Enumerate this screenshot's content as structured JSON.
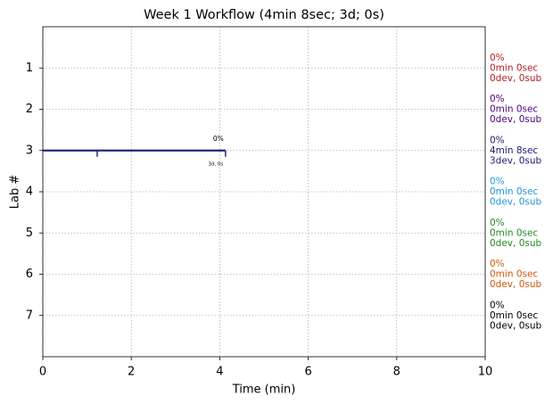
{
  "chart_data": {
    "type": "timeline",
    "title": "Week 1 Workflow (4min 8sec; 3d; 0s)",
    "xlabel": "Time (min)",
    "ylabel": "Lab #",
    "xlim": [
      0,
      10
    ],
    "xticks": [
      0,
      2,
      4,
      6,
      8,
      10
    ],
    "ylim": [
      8,
      0
    ],
    "yticks": [
      1,
      2,
      3,
      4,
      5,
      6,
      7
    ],
    "grid": true,
    "segments": [
      {
        "lab": 3,
        "start": 0,
        "end": 4.13,
        "color": "#1f2a7a",
        "events": [
          1.23,
          4.13
        ],
        "label_above": "0%",
        "label_below": "3d, 0s"
      }
    ],
    "summaries": [
      {
        "lab": 1,
        "color": "#b22222",
        "lines": [
          "0%",
          "0min 0sec",
          "0dev, 0sub"
        ]
      },
      {
        "lab": 2,
        "color": "#4b0082",
        "lines": [
          "0%",
          "0min 0sec",
          "0dev, 0sub"
        ]
      },
      {
        "lab": 3,
        "color": "#191970",
        "lines": [
          "0%",
          "4min 8sec",
          "3dev, 0sub"
        ]
      },
      {
        "lab": 4,
        "color": "#1f96d8",
        "lines": [
          "0%",
          "0min 0sec",
          "0dev, 0sub"
        ]
      },
      {
        "lab": 5,
        "color": "#228b22",
        "lines": [
          "0%",
          "0min 0sec",
          "0dev, 0sub"
        ]
      },
      {
        "lab": 6,
        "color": "#d2580a",
        "lines": [
          "0%",
          "0min 0sec",
          "0dev, 0sub"
        ]
      },
      {
        "lab": 7,
        "color": "#000000",
        "lines": [
          "0%",
          "0min 0sec",
          "0dev, 0sub"
        ]
      }
    ]
  }
}
